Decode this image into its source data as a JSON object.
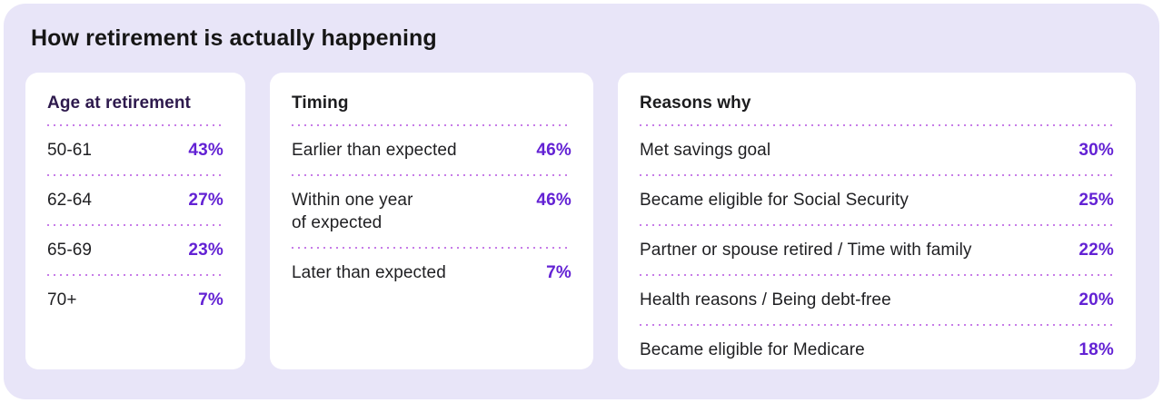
{
  "page": {
    "title": "How retirement is actually happening"
  },
  "colors": {
    "page_background": "#ffffff",
    "panel_background": "#e8e5f8",
    "card_background": "#ffffff",
    "accent_percent": "#6322d4",
    "dotted_divider": "#c77ce8",
    "age_card_heading": "#2e1a4d",
    "body_text": "#1f1f22"
  },
  "cards": [
    {
      "title": "Age at retirement",
      "rows": [
        {
          "label": "50-61",
          "value": "43%"
        },
        {
          "label": "62-64",
          "value": "27%"
        },
        {
          "label": "65-69",
          "value": "23%"
        },
        {
          "label": "70+",
          "value": "7%"
        }
      ]
    },
    {
      "title": "Timing",
      "rows": [
        {
          "label": "Earlier than expected",
          "value": "46%"
        },
        {
          "label": "Within one year\nof expected",
          "value": "46%"
        },
        {
          "label": "Later than expected",
          "value": "7%"
        }
      ]
    },
    {
      "title": "Reasons why",
      "rows": [
        {
          "label": "Met savings goal",
          "value": "30%"
        },
        {
          "label": "Became eligible for Social Security",
          "value": "25%"
        },
        {
          "label": "Partner or spouse retired / Time with family",
          "value": "22%"
        },
        {
          "label": "Health reasons / Being debt-free",
          "value": "20%"
        },
        {
          "label": "Became eligible for Medicare",
          "value": "18%"
        }
      ]
    }
  ],
  "chart_data": [
    {
      "type": "table",
      "title": "Age at retirement",
      "categories": [
        "50-61",
        "62-64",
        "65-69",
        "70+"
      ],
      "values": [
        43,
        27,
        23,
        7
      ],
      "unit": "%"
    },
    {
      "type": "table",
      "title": "Timing",
      "categories": [
        "Earlier than expected",
        "Within one year of expected",
        "Later than expected"
      ],
      "values": [
        46,
        46,
        7
      ],
      "unit": "%"
    },
    {
      "type": "table",
      "title": "Reasons why",
      "categories": [
        "Met savings goal",
        "Became eligible for Social Security",
        "Partner or spouse retired / Time with family",
        "Health reasons / Being debt-free",
        "Became eligible for Medicare"
      ],
      "values": [
        30,
        25,
        22,
        20,
        18
      ],
      "unit": "%"
    }
  ]
}
